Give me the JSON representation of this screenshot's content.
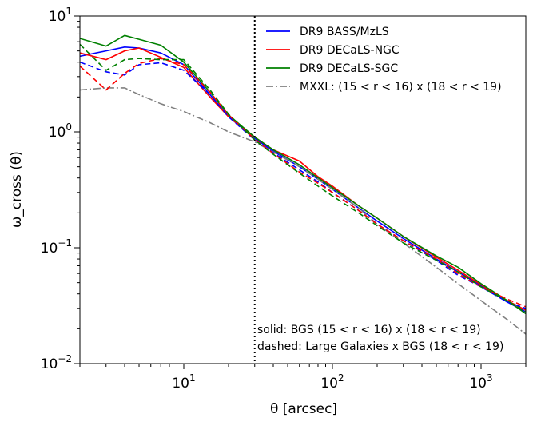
{
  "chart_data": {
    "type": "line",
    "xscale": "log",
    "yscale": "log",
    "xlim": [
      2,
      2000
    ],
    "ylim": [
      0.01,
      10
    ],
    "xlabel": "θ [arcsec]",
    "ylabel": "ω_cross (θ)",
    "x_ticks": [
      {
        "value": 10,
        "base": "10",
        "exp": "1"
      },
      {
        "value": 100,
        "base": "10",
        "exp": "2"
      },
      {
        "value": 1000,
        "base": "10",
        "exp": "3"
      }
    ],
    "y_ticks": [
      {
        "value": 0.01,
        "base": "10",
        "exp": "−2"
      },
      {
        "value": 0.1,
        "base": "10",
        "exp": "−1"
      },
      {
        "value": 1,
        "base": "10",
        "exp": "0"
      },
      {
        "value": 10,
        "base": "10",
        "exp": "1"
      }
    ],
    "vline": {
      "x": 30,
      "style": "dotted",
      "color": "#000000"
    },
    "legend": {
      "placement": "top-right"
    },
    "annotations": {
      "solid": "solid: BGS (15 < r < 16) x (18 < r < 19)",
      "dashed": "dashed: Large Galaxies x BGS (18 < r < 19)"
    },
    "series": [
      {
        "name": "DR9 BASS/MzLS",
        "color": "#0000ff",
        "style": "solid",
        "x": [
          2,
          3,
          4,
          5,
          7,
          10,
          15,
          20,
          30,
          40,
          60,
          80,
          100,
          150,
          200,
          300,
          500,
          700,
          1000,
          1500,
          2000
        ],
        "y": [
          4.5,
          5.0,
          5.4,
          5.3,
          4.8,
          3.8,
          2.1,
          1.35,
          0.88,
          0.68,
          0.5,
          0.39,
          0.32,
          0.22,
          0.17,
          0.12,
          0.08,
          0.062,
          0.047,
          0.034,
          0.028
        ]
      },
      {
        "name": "DR9 DECaLS-NGC",
        "color": "#ff0000",
        "style": "solid",
        "x": [
          2,
          3,
          4,
          5,
          7,
          10,
          15,
          20,
          30,
          40,
          60,
          80,
          100,
          150,
          200,
          300,
          500,
          700,
          1000,
          1500,
          2000
        ],
        "y": [
          4.8,
          4.2,
          5.0,
          5.3,
          4.4,
          3.6,
          2.0,
          1.35,
          0.9,
          0.7,
          0.56,
          0.41,
          0.34,
          0.23,
          0.18,
          0.125,
          0.083,
          0.064,
          0.048,
          0.035,
          0.029
        ]
      },
      {
        "name": "DR9 DECaLS-SGC",
        "color": "#008000",
        "style": "solid",
        "x": [
          2,
          3,
          4,
          5,
          7,
          10,
          15,
          20,
          30,
          40,
          60,
          80,
          100,
          150,
          200,
          300,
          500,
          700,
          1000,
          1500,
          2000
        ],
        "y": [
          6.4,
          5.5,
          6.8,
          6.3,
          5.6,
          4.0,
          2.2,
          1.4,
          0.9,
          0.7,
          0.52,
          0.4,
          0.33,
          0.23,
          0.18,
          0.125,
          0.085,
          0.068,
          0.049,
          0.035,
          0.027
        ]
      },
      {
        "name": "MXXL: (15 < r < 16) x (18 < r < 19)",
        "color": "#808080",
        "style": "dashdot",
        "x": [
          2,
          3,
          4,
          5,
          7,
          10,
          15,
          20,
          30,
          40,
          60,
          80,
          100,
          150,
          200,
          300,
          500,
          700,
          1000,
          1500,
          2000
        ],
        "y": [
          2.3,
          2.4,
          2.4,
          2.1,
          1.75,
          1.5,
          1.2,
          1.0,
          0.82,
          0.67,
          0.5,
          0.39,
          0.32,
          0.22,
          0.16,
          0.11,
          0.068,
          0.049,
          0.035,
          0.024,
          0.018
        ]
      },
      {
        "color": "#0000ff",
        "style": "dashed",
        "x": [
          2,
          3,
          4,
          5,
          7,
          10,
          15,
          20,
          30,
          40,
          60,
          80,
          100,
          150,
          200,
          300,
          500,
          700,
          1000,
          1500,
          2000
        ],
        "y": [
          4.0,
          3.3,
          3.1,
          3.8,
          3.95,
          3.4,
          2.1,
          1.35,
          0.85,
          0.66,
          0.47,
          0.37,
          0.3,
          0.21,
          0.16,
          0.115,
          0.078,
          0.058,
          0.046,
          0.034,
          0.03
        ]
      },
      {
        "color": "#ff0000",
        "style": "dashed",
        "x": [
          2,
          3,
          4,
          5,
          7,
          10,
          15,
          20,
          30,
          40,
          60,
          80,
          100,
          150,
          200,
          300,
          500,
          700,
          1000,
          1500,
          2000
        ],
        "y": [
          3.7,
          2.3,
          3.2,
          3.9,
          4.3,
          3.8,
          2.2,
          1.4,
          0.86,
          0.65,
          0.45,
          0.36,
          0.3,
          0.21,
          0.16,
          0.115,
          0.08,
          0.06,
          0.046,
          0.036,
          0.031
        ]
      },
      {
        "color": "#008000",
        "style": "dashed",
        "x": [
          2,
          3,
          4,
          5,
          7,
          10,
          15,
          20,
          30,
          40,
          60,
          80,
          100,
          150,
          200,
          300,
          500,
          700,
          1000,
          1500,
          2000
        ],
        "y": [
          5.7,
          3.4,
          4.2,
          4.3,
          4.2,
          4.2,
          2.3,
          1.42,
          0.85,
          0.64,
          0.44,
          0.34,
          0.28,
          0.2,
          0.155,
          0.11,
          0.078,
          0.062,
          0.046,
          0.035,
          0.028
        ]
      }
    ]
  }
}
